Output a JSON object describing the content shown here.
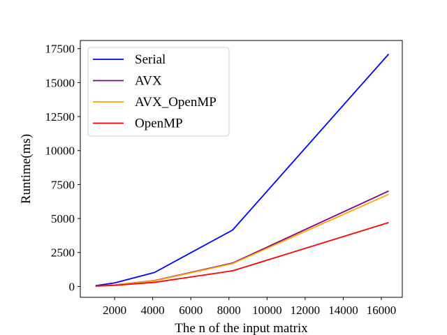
{
  "chart_data": {
    "type": "line",
    "title": "",
    "xlabel": "The n of the input matrix",
    "ylabel": "Runtime(ms)",
    "xlim": [
      200,
      17100
    ],
    "ylim": [
      -800,
      18100
    ],
    "xticks": [
      2000,
      4000,
      6000,
      8000,
      10000,
      12000,
      14000,
      16000
    ],
    "yticks": [
      0,
      2500,
      5000,
      7500,
      10000,
      12500,
      15000,
      17500
    ],
    "grid": false,
    "legend_position": "top-left",
    "x": [
      1000,
      2000,
      4096,
      8192,
      16384
    ],
    "series": [
      {
        "name": "Serial",
        "color": "#0000ff",
        "values": [
          60,
          260,
          1030,
          4150,
          17100
        ]
      },
      {
        "name": "AVX",
        "color": "#800080",
        "values": [
          30,
          110,
          430,
          1720,
          7020
        ]
      },
      {
        "name": "AVX_OpenMP",
        "color": "#ffa500",
        "values": [
          30,
          105,
          410,
          1680,
          6780
        ]
      },
      {
        "name": "OpenMP",
        "color": "#ff0000",
        "values": [
          25,
          80,
          300,
          1150,
          4700
        ]
      }
    ]
  }
}
